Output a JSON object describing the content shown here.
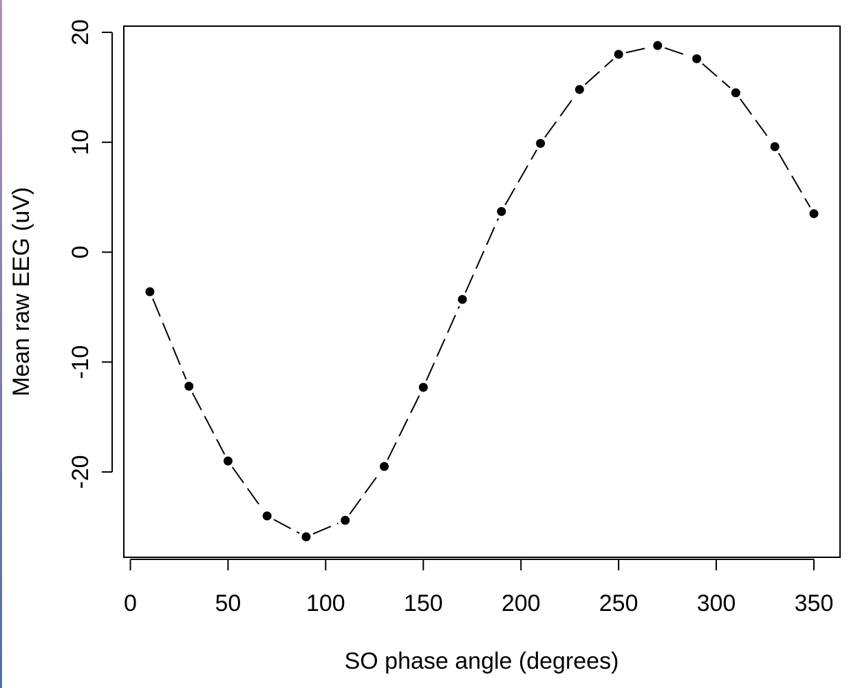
{
  "chart_data": {
    "type": "scatter",
    "title": "",
    "xlabel": "SO phase angle (degrees)",
    "ylabel": "Mean raw EEG (uV)",
    "xlim": [
      0,
      360
    ],
    "ylim": [
      -28,
      20.5
    ],
    "x_ticks": [
      0,
      50,
      100,
      150,
      200,
      250,
      300,
      350
    ],
    "x_tick_labels": [
      "0",
      "50",
      "100",
      "150",
      "200",
      "250",
      "300",
      "350"
    ],
    "y_ticks": [
      -20,
      -10,
      0,
      10,
      20
    ],
    "y_tick_labels": [
      "-20",
      "-10",
      "0",
      "10",
      "20"
    ],
    "grid": false,
    "line_style": "dashed",
    "series": [
      {
        "x": [
          10,
          30,
          50,
          70,
          90,
          110,
          130,
          150,
          170,
          190,
          210,
          230,
          250,
          270,
          290,
          310,
          330,
          350
        ],
        "y": [
          -3.6,
          -12.2,
          -19.0,
          -24.0,
          -25.9,
          -24.4,
          -19.5,
          -12.3,
          -4.3,
          3.7,
          9.9,
          14.8,
          18.0,
          18.8,
          17.6,
          14.5,
          9.6,
          3.5
        ]
      }
    ]
  }
}
